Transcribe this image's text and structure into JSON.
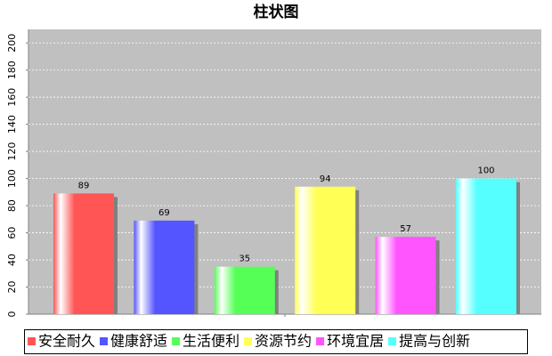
{
  "chart_data": {
    "type": "bar",
    "title": "柱状图",
    "categories": [
      "安全耐久",
      "健康舒适",
      "生活便利",
      "资源节约",
      "环境宜居",
      "提高与创新"
    ],
    "values": [
      89,
      69,
      35,
      94,
      57,
      100
    ],
    "colors": [
      "#ff5555",
      "#5555ff",
      "#55ff55",
      "#ffff55",
      "#ff55ff",
      "#55ffff"
    ],
    "ylim": [
      0,
      210
    ],
    "yticks": [
      0,
      20,
      40,
      60,
      80,
      100,
      120,
      140,
      160,
      180,
      200
    ],
    "grid": true
  }
}
